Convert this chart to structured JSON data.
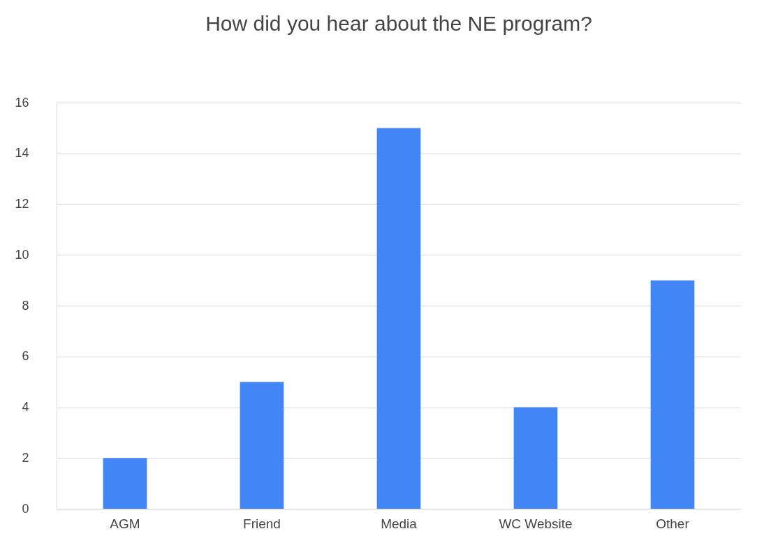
{
  "chart_data": {
    "type": "bar",
    "title": "How did you hear about the NE program?",
    "categories": [
      "AGM",
      "Friend",
      "Media",
      "WC Website",
      "Other"
    ],
    "values": [
      2,
      5,
      15,
      4,
      9
    ],
    "color": "#4285f4",
    "ylim": [
      0,
      16
    ],
    "yticks": [
      0,
      2,
      4,
      6,
      8,
      10,
      12,
      14,
      16
    ],
    "grid": "y"
  }
}
